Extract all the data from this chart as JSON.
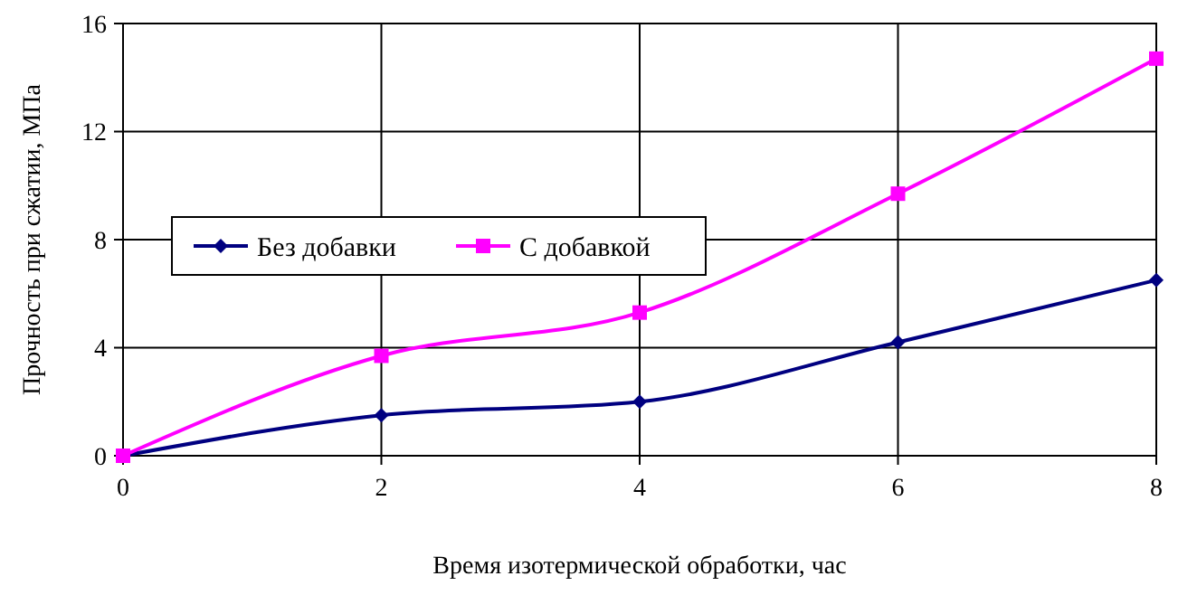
{
  "chart_data": {
    "type": "line",
    "xlabel": "Время изотермической обработки, час",
    "ylabel": "Прочность при сжатии, МПа",
    "x": [
      0,
      2,
      4,
      6,
      8
    ],
    "series": [
      {
        "name": "Без добавки",
        "color": "#000080",
        "values": [
          0,
          1.5,
          2.0,
          4.2,
          6.5
        ],
        "marker": "diamond"
      },
      {
        "name": "С добавкой",
        "color": "#ff00ff",
        "values": [
          0,
          3.7,
          5.3,
          9.7,
          14.7
        ],
        "marker": "square"
      }
    ],
    "xlim": [
      0,
      8
    ],
    "xticks": [
      0,
      2,
      4,
      6,
      8
    ],
    "ylim": [
      0,
      16
    ],
    "yticks": [
      0,
      4,
      8,
      12,
      16
    ],
    "grid": true,
    "legend": "left",
    "line_style": "solid"
  }
}
